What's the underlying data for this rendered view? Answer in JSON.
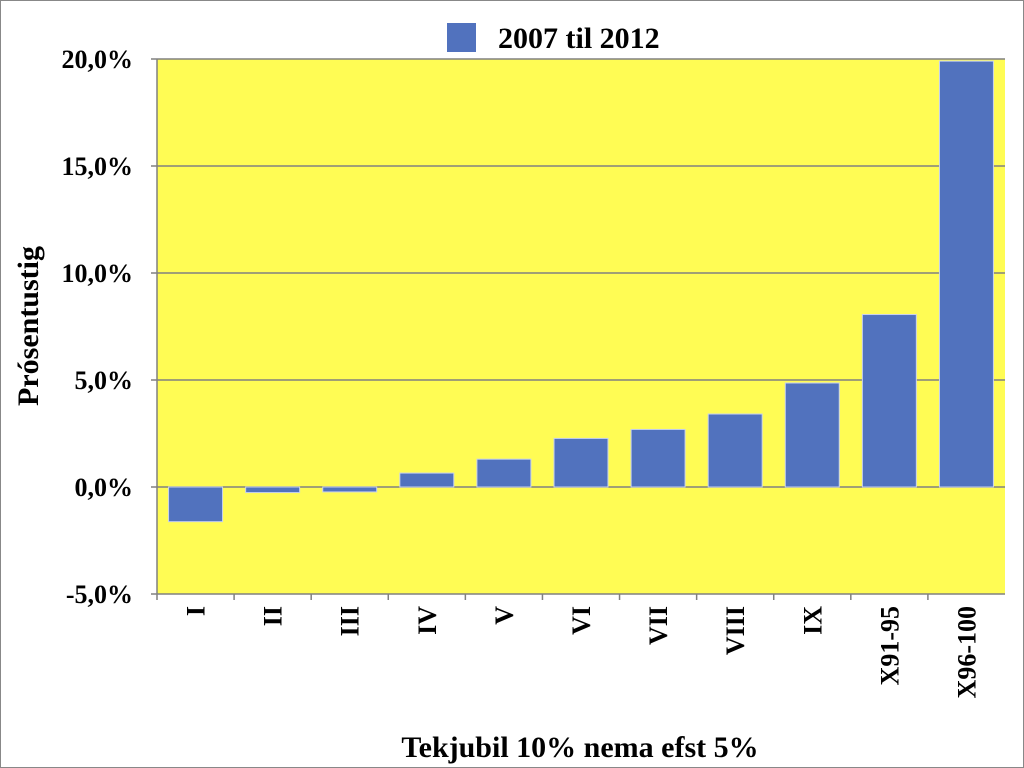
{
  "chart_data": {
    "type": "bar",
    "title": "",
    "xlabel": "Tekjubil 10% nema efst 5%",
    "ylabel": "Prósentustig",
    "legend": {
      "entries": [
        "2007 til 2012"
      ],
      "placement": "top-center"
    },
    "categories": [
      "I",
      "II",
      "III",
      "IV",
      "V",
      "VI",
      "VII",
      "VIII",
      "IX",
      "X91-95",
      "X96-100"
    ],
    "series": [
      {
        "name": "2007 til 2012",
        "values": [
          -1.62,
          -0.26,
          -0.23,
          0.65,
          1.3,
          2.27,
          2.69,
          3.41,
          4.86,
          8.06,
          19.9
        ]
      }
    ],
    "ylim": [
      -5,
      20
    ],
    "yticks": [
      -5,
      0,
      5,
      10,
      15,
      20
    ],
    "ytick_labels": [
      "-5,0%",
      "0,0%",
      "5,0%",
      "10,0%",
      "15,0%",
      "20,0%"
    ],
    "grid": true,
    "colors": {
      "bar": "#5172BE",
      "plot_bg": "#FFFC54",
      "grid": "#808080"
    }
  }
}
